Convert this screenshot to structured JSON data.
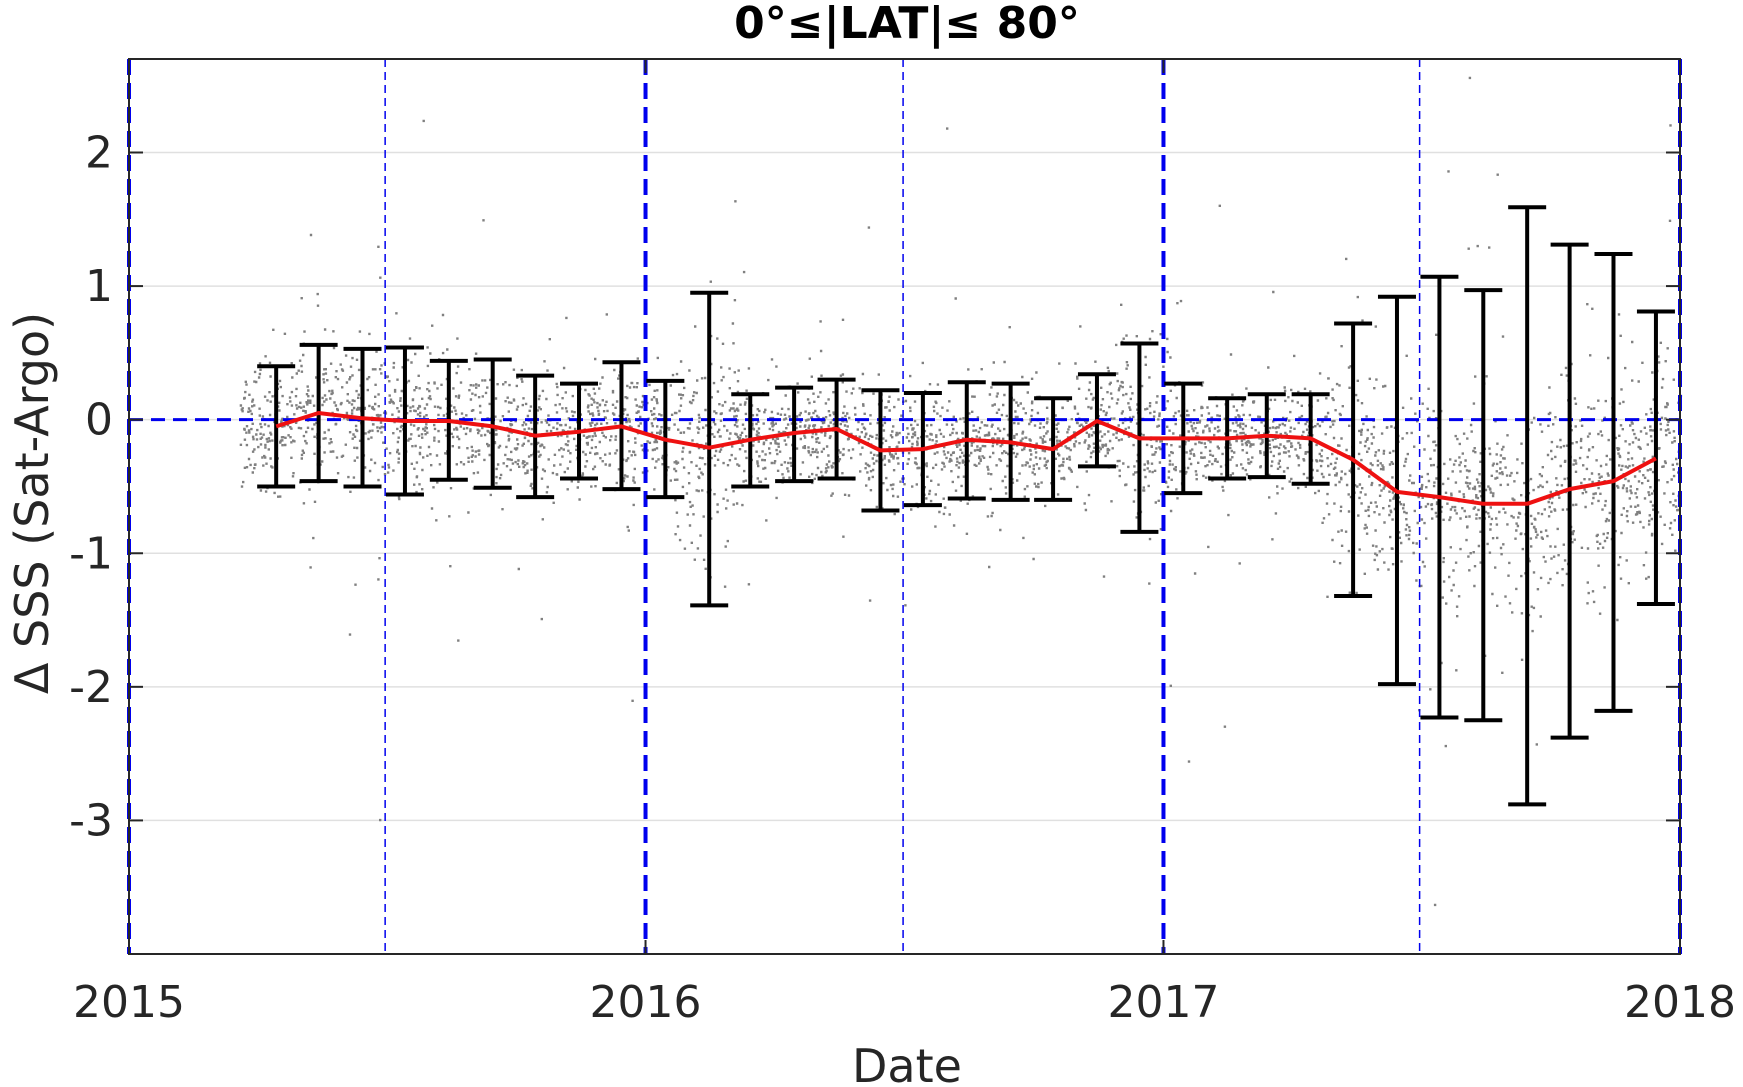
{
  "chart_data": {
    "type": "scatter",
    "title": "0°≤|LAT|≤ 80°",
    "xlabel": "Date",
    "ylabel": "Δ SSS (Sat-Argo)",
    "xlim": [
      "2015-01-01",
      "2018-01-01"
    ],
    "ylim": [
      -4,
      2.7
    ],
    "x_ticks": [
      "2015",
      "2016",
      "2017",
      "2018"
    ],
    "y_ticks": [
      2,
      1,
      0,
      -1,
      -2,
      -3
    ],
    "y_tick_labels": [
      "2",
      "1",
      "0",
      "-1",
      "-2",
      "-3"
    ],
    "grid": true,
    "colors": {
      "scatter": "#808080",
      "mean_line": "#ee1111",
      "error_bars": "#000000",
      "reference_lines": "#0000ee"
    },
    "reference_lines": {
      "zero_line": 0,
      "year_lines": [
        "2015-01-01",
        "2016-01-01",
        "2017-01-01",
        "2018-01-01"
      ],
      "half_year_lines": [
        "2015-07-01",
        "2016-07-01",
        "2017-07-01"
      ]
    },
    "series": [
      {
        "type": "line",
        "x": [
          "2015-04-15",
          "2015-05-15",
          "2015-06-15",
          "2015-07-15",
          "2015-08-15",
          "2015-09-15",
          "2015-10-15",
          "2015-11-15",
          "2015-12-15",
          "2016-01-15",
          "2016-02-15",
          "2016-03-15",
          "2016-04-15",
          "2016-05-15",
          "2016-06-15",
          "2016-07-15",
          "2016-08-15",
          "2016-09-15",
          "2016-10-15",
          "2016-11-15",
          "2016-12-15",
          "2017-01-15",
          "2017-02-15",
          "2017-03-15",
          "2017-04-15",
          "2017-05-15",
          "2017-06-15",
          "2017-07-15",
          "2017-08-15",
          "2017-09-15",
          "2017-10-15",
          "2017-11-15",
          "2017-12-15"
        ],
        "values": [
          -0.05,
          0.05,
          0.01,
          -0.01,
          -0.01,
          -0.05,
          -0.12,
          -0.09,
          -0.05,
          -0.15,
          -0.21,
          -0.15,
          -0.1,
          -0.07,
          -0.23,
          -0.22,
          -0.15,
          -0.17,
          -0.22,
          -0.01,
          -0.14,
          -0.14,
          -0.14,
          -0.12,
          -0.14,
          -0.3,
          -0.54,
          -0.58,
          -0.63,
          -0.63,
          -0.52,
          -0.46,
          -0.29
        ]
      },
      {
        "type": "errorbar",
        "x": [
          "2015-04-15",
          "2015-05-15",
          "2015-06-15",
          "2015-07-15",
          "2015-08-15",
          "2015-09-15",
          "2015-10-15",
          "2015-11-15",
          "2015-12-15",
          "2016-01-15",
          "2016-02-15",
          "2016-03-15",
          "2016-04-15",
          "2016-05-15",
          "2016-06-15",
          "2016-07-15",
          "2016-08-15",
          "2016-09-15",
          "2016-10-15",
          "2016-11-15",
          "2016-12-15",
          "2017-01-15",
          "2017-02-15",
          "2017-03-15",
          "2017-04-15",
          "2017-05-15",
          "2017-06-15",
          "2017-07-15",
          "2017-08-15",
          "2017-09-15",
          "2017-10-15",
          "2017-11-15",
          "2017-12-15"
        ],
        "lower": [
          -0.5,
          -0.46,
          -0.5,
          -0.56,
          -0.45,
          -0.51,
          -0.58,
          -0.44,
          -0.52,
          -0.58,
          -1.39,
          -0.5,
          -0.46,
          -0.44,
          -0.68,
          -0.64,
          -0.59,
          -0.6,
          -0.6,
          -0.35,
          -0.84,
          -0.55,
          -0.44,
          -0.43,
          -0.48,
          -1.32,
          -1.98,
          -2.23,
          -2.25,
          -2.88,
          -2.38,
          -2.18,
          -1.38
        ],
        "upper": [
          0.4,
          0.56,
          0.53,
          0.54,
          0.44,
          0.45,
          0.33,
          0.27,
          0.43,
          0.29,
          0.95,
          0.19,
          0.24,
          0.3,
          0.22,
          0.2,
          0.28,
          0.27,
          0.16,
          0.34,
          0.57,
          0.27,
          0.16,
          0.19,
          0.19,
          0.72,
          0.92,
          1.07,
          0.97,
          1.59,
          1.31,
          1.24,
          0.81
        ]
      }
    ]
  }
}
